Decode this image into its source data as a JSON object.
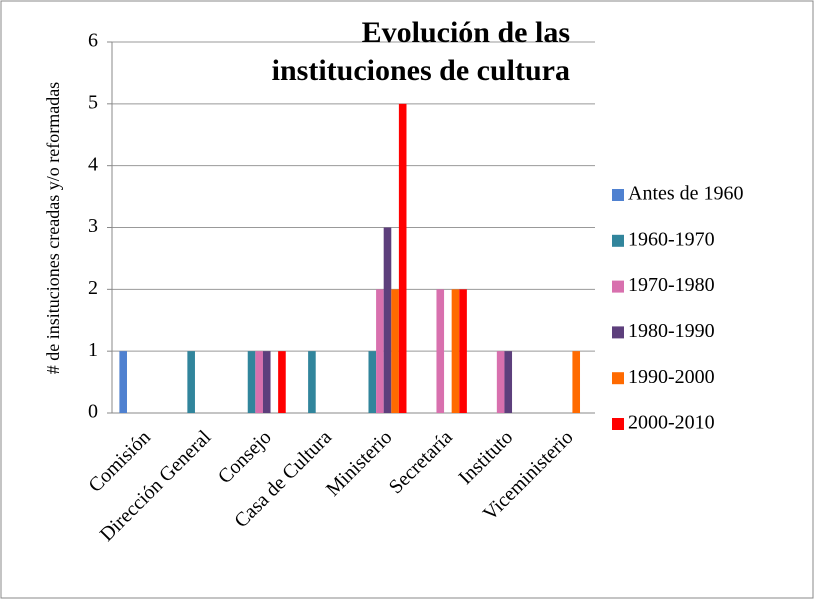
{
  "chart_data": {
    "type": "bar",
    "title": "Evolución de las instituciones de cultura",
    "y_label": "# de insituciones creadas y/o reformadas",
    "categories": [
      "Comisión",
      "Dirección General",
      "Consejo",
      "Casa de Cultura",
      "Ministerio",
      "Secretaría",
      "Instituto",
      "Viceministerio"
    ],
    "series": [
      {
        "name": "Antes de 1960",
        "color": "#4f81d0",
        "values": [
          1,
          0,
          0,
          0,
          0,
          0,
          0,
          0
        ]
      },
      {
        "name": "1960-1970",
        "color": "#31859c",
        "values": [
          0,
          1,
          1,
          1,
          1,
          0,
          0,
          0
        ]
      },
      {
        "name": "1970-1980",
        "color": "#d870ae",
        "values": [
          0,
          0,
          1,
          0,
          2,
          2,
          1,
          0
        ]
      },
      {
        "name": "1980-1990",
        "color": "#5d3f7c",
        "values": [
          0,
          0,
          1,
          0,
          3,
          0,
          1,
          0
        ]
      },
      {
        "name": "1990-2000",
        "color": "#ff6a00",
        "values": [
          0,
          0,
          0,
          0,
          2,
          2,
          0,
          1
        ]
      },
      {
        "name": "2000-2010",
        "color": "#ff0000",
        "values": [
          0,
          0,
          1,
          0,
          5,
          2,
          0,
          0
        ]
      }
    ],
    "ylim": [
      0,
      6
    ],
    "yticks": [
      0,
      1,
      2,
      3,
      4,
      5,
      6
    ],
    "grid": true,
    "legend": "right"
  }
}
